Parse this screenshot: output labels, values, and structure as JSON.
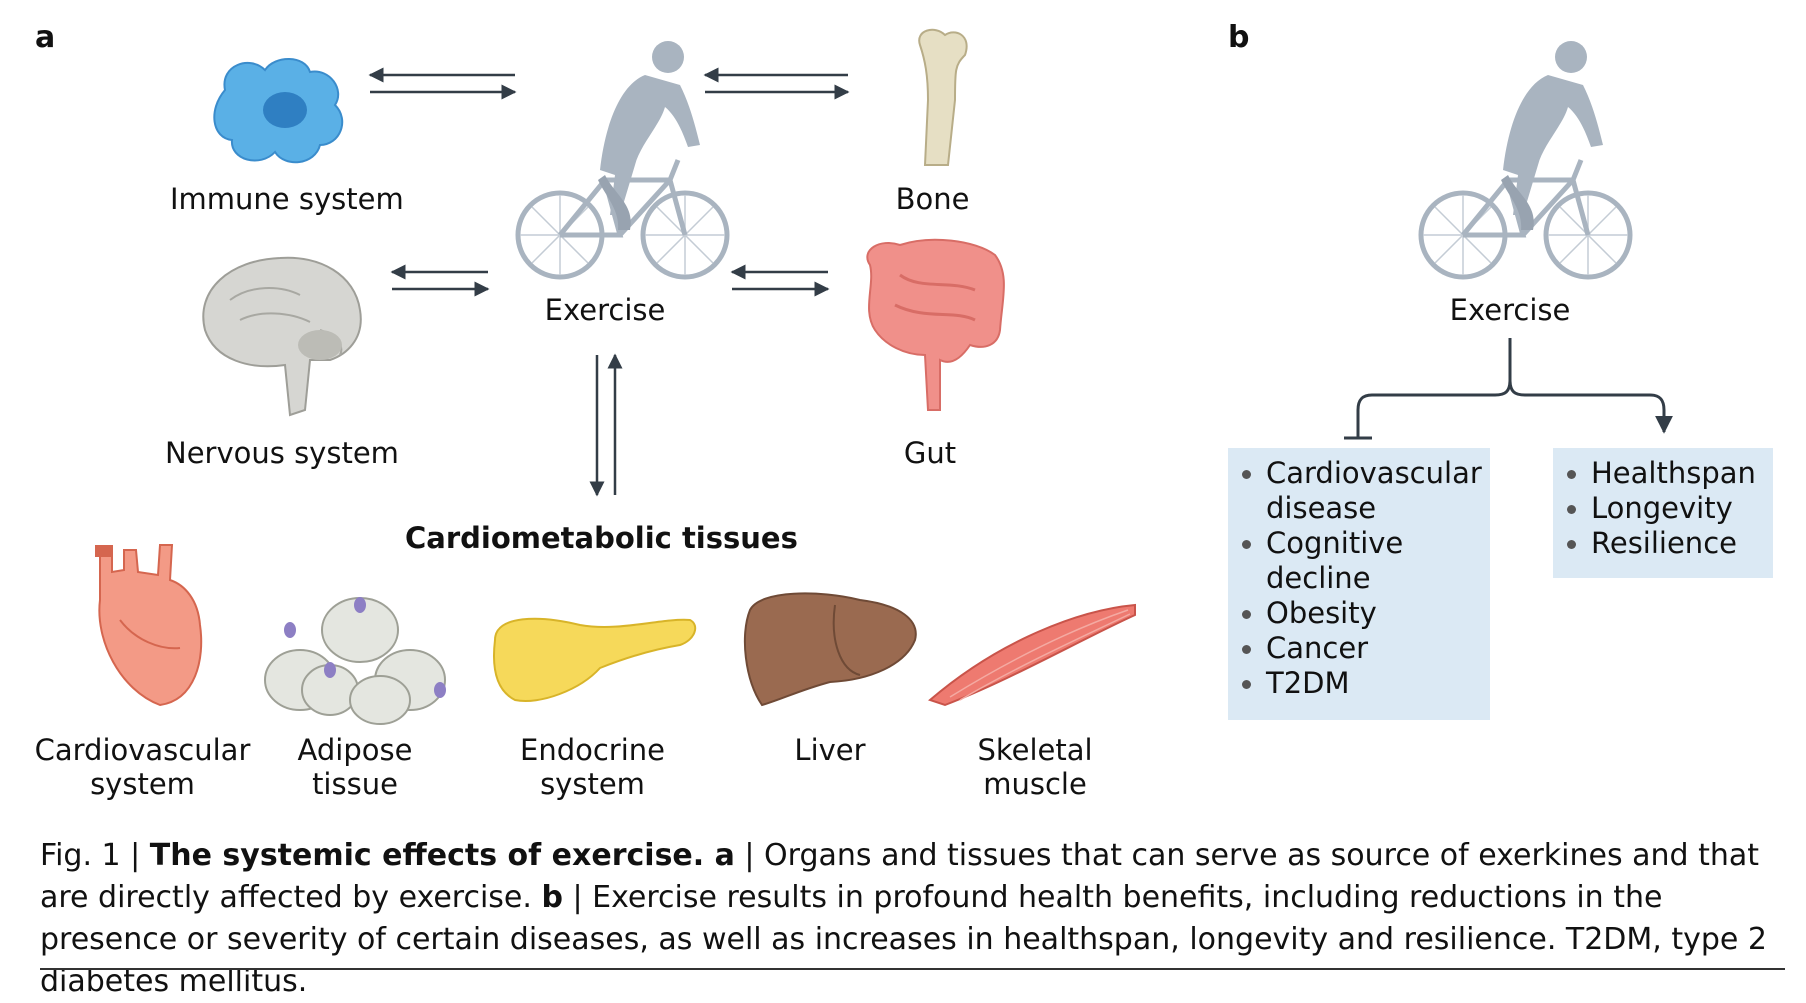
{
  "panel_a": {
    "letter": "a",
    "nodes": {
      "immune": "Immune system",
      "exercise": "Exercise",
      "bone": "Bone",
      "nervous": "Nervous system",
      "gut": "Gut",
      "cardiometabolic": "Cardiometabolic tissues"
    },
    "tissues": [
      [
        "Cardiovascular",
        "system"
      ],
      [
        "Adipose",
        "tissue"
      ],
      [
        "Endocrine",
        "system"
      ],
      [
        "Liver"
      ],
      [
        "Skeletal",
        "muscle"
      ]
    ]
  },
  "panel_b": {
    "letter": "b",
    "exercise": "Exercise",
    "reduced": [
      [
        "Cardiovascular",
        "disease"
      ],
      [
        "Cognitive",
        "decline"
      ],
      [
        "Obesity"
      ],
      [
        "Cancer"
      ],
      [
        "T2DM"
      ]
    ],
    "increased": [
      "Healthspan",
      "Longevity",
      "Resilience"
    ]
  },
  "caption": {
    "fig": "Fig. 1 | ",
    "title": "The systemic effects of exercise. a",
    "part_a": " | Organs and tissues that can serve as source of exerkines and that are directly affected by exercise. ",
    "b": "b",
    "part_b": " | Exercise results in profound health benefits, including reductions in the presence or severity of certain diseases, as well as increases in healthspan, longevity and resilience. T2DM, type 2 diabetes mellitus."
  },
  "colors": {
    "cyclist": "#a9b4c0",
    "arrow": "#333d47",
    "box": "#dbe9f4",
    "immune": "#5ab0e6",
    "gut": "#f0908a",
    "heart": "#f08a78",
    "pancreas": "#f6d95a",
    "liver": "#9a6a50",
    "muscle": "#ee7a70",
    "fat": "#e4e6e0",
    "bone": "#e6dfc4",
    "brain": "#c9c9c4"
  }
}
